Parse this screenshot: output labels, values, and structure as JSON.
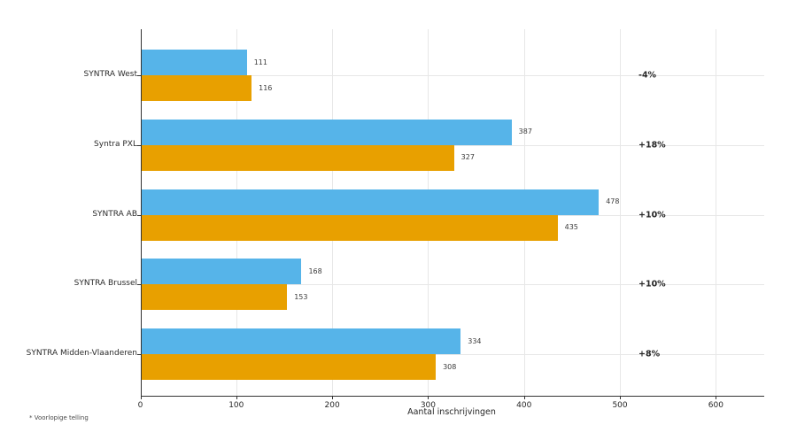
{
  "chart_data": {
    "type": "bar",
    "orientation": "horizontal",
    "categories": [
      "SYNTRA West",
      "Syntra PXL",
      "SYNTRA AB",
      "SYNTRA Brussel",
      "SYNTRA Midden-Vlaanderen"
    ],
    "series": [
      {
        "name": "blue",
        "color": "#56b4e9",
        "values": [
          111,
          387,
          478,
          168,
          334
        ]
      },
      {
        "name": "orange",
        "color": "#e8a000",
        "values": [
          116,
          327,
          435,
          153,
          308
        ]
      }
    ],
    "delta_labels": [
      "-4%",
      "+18%",
      "+10%",
      "+10%",
      "+8%"
    ],
    "xlabel": "Aantal inschrijvingen",
    "x_ticks": [
      0,
      100,
      200,
      300,
      400,
      500,
      600
    ],
    "xlim": [
      0,
      650
    ],
    "grid": true,
    "legend_position": "none",
    "footnote": "* Voorlopige telling",
    "colors": {
      "grid": "#e7e7e7",
      "spine": "#333333",
      "bar_blue": "#56b4e9",
      "bar_orange": "#e8a000",
      "value_label": "#3c3c3c",
      "delta_label": "#262626"
    }
  }
}
